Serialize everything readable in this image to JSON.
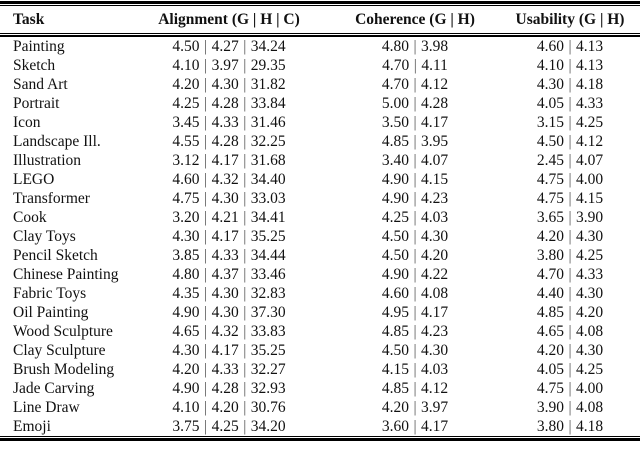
{
  "page": {
    "background_color": "#ffffff",
    "text_color": "#111111",
    "rule_color": "#000000",
    "separator_color": "#555555"
  },
  "table": {
    "headers": {
      "task": "Task",
      "alignment": "Alignment (G | H | C)",
      "coherence": "Coherence (G | H)",
      "usability": "Usability (G | H)"
    },
    "separator": "|",
    "rows": [
      {
        "task": "Painting",
        "alignment": [
          "4.50",
          "4.27",
          "34.24"
        ],
        "coherence": [
          "4.80",
          "3.98"
        ],
        "usability": [
          "4.60",
          "4.13"
        ]
      },
      {
        "task": "Sketch",
        "alignment": [
          "4.10",
          "3.97",
          "29.35"
        ],
        "coherence": [
          "4.70",
          "4.11"
        ],
        "usability": [
          "4.10",
          "4.13"
        ]
      },
      {
        "task": "Sand Art",
        "alignment": [
          "4.20",
          "4.30",
          "31.82"
        ],
        "coherence": [
          "4.70",
          "4.12"
        ],
        "usability": [
          "4.30",
          "4.18"
        ]
      },
      {
        "task": "Portrait",
        "alignment": [
          "4.25",
          "4.28",
          "33.84"
        ],
        "coherence": [
          "5.00",
          "4.28"
        ],
        "usability": [
          "4.05",
          "4.33"
        ]
      },
      {
        "task": "Icon",
        "alignment": [
          "3.45",
          "4.33",
          "31.46"
        ],
        "coherence": [
          "3.50",
          "4.17"
        ],
        "usability": [
          "3.15",
          "4.25"
        ]
      },
      {
        "task": "Landscape Ill.",
        "alignment": [
          "4.55",
          "4.28",
          "32.25"
        ],
        "coherence": [
          "4.85",
          "3.95"
        ],
        "usability": [
          "4.50",
          "4.12"
        ]
      },
      {
        "task": "Illustration",
        "alignment": [
          "3.12",
          "4.17",
          "31.68"
        ],
        "coherence": [
          "3.40",
          "4.07"
        ],
        "usability": [
          "2.45",
          "4.07"
        ]
      },
      {
        "task": "LEGO",
        "alignment": [
          "4.60",
          "4.32",
          "34.40"
        ],
        "coherence": [
          "4.90",
          "4.15"
        ],
        "usability": [
          "4.75",
          "4.00"
        ]
      },
      {
        "task": "Transformer",
        "alignment": [
          "4.75",
          "4.30",
          "33.03"
        ],
        "coherence": [
          "4.90",
          "4.23"
        ],
        "usability": [
          "4.75",
          "4.15"
        ]
      },
      {
        "task": "Cook",
        "alignment": [
          "3.20",
          "4.21",
          "34.41"
        ],
        "coherence": [
          "4.25",
          "4.03"
        ],
        "usability": [
          "3.65",
          "3.90"
        ]
      },
      {
        "task": "Clay Toys",
        "alignment": [
          "4.30",
          "4.17",
          "35.25"
        ],
        "coherence": [
          "4.50",
          "4.30"
        ],
        "usability": [
          "4.20",
          "4.30"
        ]
      },
      {
        "task": "Pencil Sketch",
        "alignment": [
          "3.85",
          "4.33",
          "34.44"
        ],
        "coherence": [
          "4.50",
          "4.20"
        ],
        "usability": [
          "3.80",
          "4.25"
        ]
      },
      {
        "task": "Chinese Painting",
        "alignment": [
          "4.80",
          "4.37",
          "33.46"
        ],
        "coherence": [
          "4.90",
          "4.22"
        ],
        "usability": [
          "4.70",
          "4.33"
        ]
      },
      {
        "task": "Fabric Toys",
        "alignment": [
          "4.35",
          "4.30",
          "32.83"
        ],
        "coherence": [
          "4.60",
          "4.08"
        ],
        "usability": [
          "4.40",
          "4.30"
        ]
      },
      {
        "task": "Oil Painting",
        "alignment": [
          "4.90",
          "4.30",
          "37.30"
        ],
        "coherence": [
          "4.95",
          "4.17"
        ],
        "usability": [
          "4.85",
          "4.20"
        ]
      },
      {
        "task": "Wood Sculpture",
        "alignment": [
          "4.65",
          "4.32",
          "33.83"
        ],
        "coherence": [
          "4.85",
          "4.23"
        ],
        "usability": [
          "4.65",
          "4.08"
        ]
      },
      {
        "task": "Clay Sculpture",
        "alignment": [
          "4.30",
          "4.17",
          "35.25"
        ],
        "coherence": [
          "4.50",
          "4.30"
        ],
        "usability": [
          "4.20",
          "4.30"
        ]
      },
      {
        "task": "Brush Modeling",
        "alignment": [
          "4.20",
          "4.33",
          "32.27"
        ],
        "coherence": [
          "4.15",
          "4.03"
        ],
        "usability": [
          "4.05",
          "4.25"
        ]
      },
      {
        "task": "Jade Carving",
        "alignment": [
          "4.90",
          "4.28",
          "32.93"
        ],
        "coherence": [
          "4.85",
          "4.12"
        ],
        "usability": [
          "4.75",
          "4.00"
        ]
      },
      {
        "task": "Line Draw",
        "alignment": [
          "4.10",
          "4.20",
          "30.76"
        ],
        "coherence": [
          "4.20",
          "3.97"
        ],
        "usability": [
          "3.90",
          "4.08"
        ]
      },
      {
        "task": "Emoji",
        "alignment": [
          "3.75",
          "4.25",
          "34.20"
        ],
        "coherence": [
          "3.60",
          "4.17"
        ],
        "usability": [
          "3.80",
          "4.18"
        ]
      }
    ]
  }
}
